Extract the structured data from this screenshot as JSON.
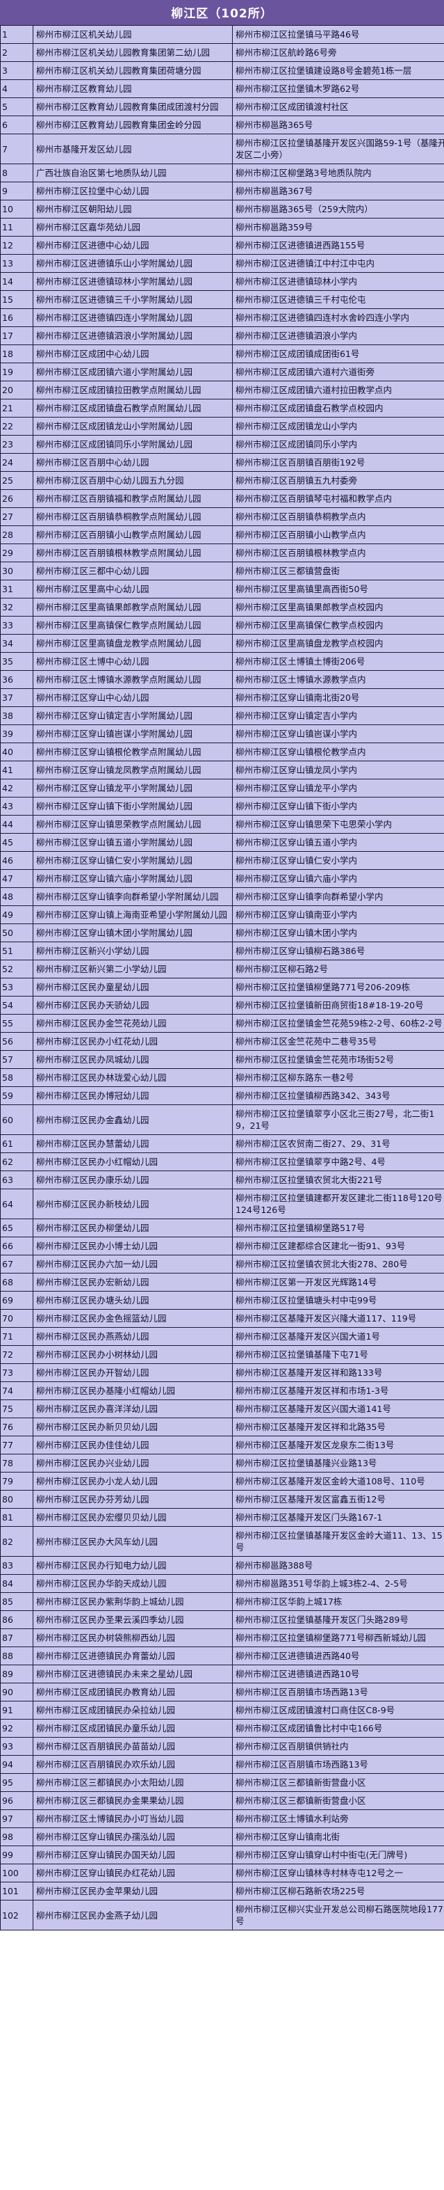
{
  "title": "柳江区（102所）",
  "colors": {
    "header_bg": "#6a549e",
    "header_text": "#ffffff",
    "row_bg": "#c9c6ee",
    "border": "#1b1b30",
    "text": "#10102a"
  },
  "table": {
    "rows": [
      [
        "1",
        "柳州市柳江区机关幼儿园",
        "柳州市柳江区拉堡镇马平路46号"
      ],
      [
        "2",
        "柳州市柳江区机关幼儿园教育集团第二幼儿园",
        "柳州市柳江区航岭路6号旁"
      ],
      [
        "3",
        "柳州市柳江区机关幼儿园教育集团荷塘分园",
        "柳州市柳江区拉堡镇建设路8号金碧苑1栋一层"
      ],
      [
        "4",
        "柳州市柳江区教育幼儿园",
        "柳州市柳江区拉堡镇木罗路62号"
      ],
      [
        "5",
        "柳州市柳江区教育幼儿园教育集团成团渡村分园",
        "柳州市柳江区成团镇渡村社区"
      ],
      [
        "6",
        "柳州市柳江区教育幼儿园教育集团金岭分园",
        "柳州市柳邕路365号"
      ],
      [
        "7",
        "柳州市基隆开发区幼儿园",
        "柳州市柳江区拉堡镇基隆开发区兴国路59-1号（基隆开发区二小旁）"
      ],
      [
        "8",
        "广西壮族自治区第七地质队幼儿园",
        "柳州市柳江区柳堡路3号地质队院内"
      ],
      [
        "9",
        "柳州市柳江区拉堡中心幼儿园",
        "柳州市柳邕路367号"
      ],
      [
        "10",
        "柳州市柳江区朝阳幼儿园",
        "柳州市柳邕路365号（259大院内）"
      ],
      [
        "11",
        "柳州市柳江区嘉华苑幼儿园",
        "柳州市柳邕路359号"
      ],
      [
        "12",
        "柳州市柳江区进德中心幼儿园",
        "柳州市柳江区进德镇进西路155号"
      ],
      [
        "13",
        "柳州市柳江区进德镇乐山小学附属幼儿园",
        "柳州市柳江区进德镇江中村江中屯内"
      ],
      [
        "14",
        "柳州市柳江区进德镇琼林小学附属幼儿园",
        "柳州市柳江区进德镇琼林小学内"
      ],
      [
        "15",
        "柳州市柳江区进德镇三千小学附属幼儿园",
        "柳州市柳江区进德镇三千村屯伦屯"
      ],
      [
        "16",
        "柳州市柳江区进德镇四连小学附属幼儿园",
        "柳州市柳江区进德镇四连村水舍岭四连小学内"
      ],
      [
        "17",
        "柳州市柳江区进德镇泗浪小学附属幼儿园",
        "柳州市柳江区进德镇泗浪小学内"
      ],
      [
        "18",
        "柳州市柳江区成团中心幼儿园",
        "柳州市柳江区成团镇成团街61号"
      ],
      [
        "19",
        "柳州市柳江区成团镇六道小学附属幼儿园",
        "柳州市柳江区成团镇六道村六道街旁"
      ],
      [
        "20",
        "柳州市柳江区成团镇拉田教学点附属幼儿园",
        "柳州市柳江区成团镇六道村拉田教学点内"
      ],
      [
        "21",
        "柳州市柳江区成团镇盘石教学点附属幼儿园",
        "柳州市柳江区成团镇盘石教学点校园内"
      ],
      [
        "22",
        "柳州市柳江区成团镇龙山小学附属幼儿园",
        "柳州市柳江区成团镇龙山小学内"
      ],
      [
        "23",
        "柳州市柳江区成团镇同乐小学附属幼儿园",
        "柳州市柳江区成团镇同乐小学内"
      ],
      [
        "24",
        "柳州市柳江区百朋中心幼儿园",
        "柳州市柳江区百朋镇百朋街192号"
      ],
      [
        "25",
        "柳州市柳江区百朋中心幼儿园五九分园",
        "柳州市柳江区百朋镇五九村委旁"
      ],
      [
        "26",
        "柳州市柳江区百朋镇福和教学点附属幼儿园",
        "柳州市柳江区百朋镇琴屯村福和教学点内"
      ],
      [
        "27",
        "柳州市柳江区百朋镇恭桐教学点附属幼儿园",
        "柳州市柳江区百朋镇恭桐教学点内"
      ],
      [
        "28",
        "柳州市柳江区百朋镇小山教学点附属幼儿园",
        "柳州市柳江区百朋镇小山教学点内"
      ],
      [
        "29",
        "柳州市柳江区百朋镇根林教学点附属幼儿园",
        "柳州市柳江区百朋镇根林教学点内"
      ],
      [
        "30",
        "柳州市柳江区三都中心幼儿园",
        "柳州市柳江区三都镇营盘街"
      ],
      [
        "31",
        "柳州市柳江区里高中心幼儿园",
        "柳州市柳江区里高镇里高西街50号"
      ],
      [
        "32",
        "柳州市柳江区里高镇果郎教学点附属幼儿园",
        "柳州市柳江区里高镇果郎教学点校园内"
      ],
      [
        "33",
        "柳州市柳江区里高镇保仁教学点附属幼儿园",
        "柳州市柳江区里高镇保仁教学点校园内"
      ],
      [
        "34",
        "柳州市柳江区里高镇盘龙教学点附属幼儿园",
        "柳州市柳江区里高镇盘龙教学点校园内"
      ],
      [
        "35",
        "柳州市柳江区土博中心幼儿园",
        "柳州市柳江区土博镇土博街206号"
      ],
      [
        "36",
        "柳州市柳江区土博镇水源教学点附属幼儿园",
        "柳州市柳江区土博镇水源教学点内"
      ],
      [
        "37",
        "柳州市柳江区穿山中心幼儿园",
        "柳州市柳江区穿山镇南北街20号"
      ],
      [
        "38",
        "柳州市柳江区穿山镇定吉小学附属幼儿园",
        "柳州市柳江区穿山镇定吉小学内"
      ],
      [
        "39",
        "柳州市柳江区穿山镇岜谋小学附属幼儿园",
        "柳州市柳江区穿山镇岜谋小学内"
      ],
      [
        "40",
        "柳州市柳江区穿山镇根伦教学点附属幼儿园",
        "柳州市柳江区穿山镇根伦教学点内"
      ],
      [
        "41",
        "柳州市柳江区穿山镇龙凤教学点附属幼儿园",
        "柳州市柳江区穿山镇龙凤小学内"
      ],
      [
        "42",
        "柳州市柳江区穿山镇龙平小学附属幼儿园",
        "柳州市柳江区穿山镇龙平小学内"
      ],
      [
        "43",
        "柳州市柳江区穿山镇下街小学附属幼儿园",
        "柳州市柳江区穿山镇下街小学内"
      ],
      [
        "44",
        "柳州市柳江区穿山镇思荣教学点附属幼儿园",
        "柳州市柳江区穿山镇思荣下屯思荣小学内"
      ],
      [
        "45",
        "柳州市柳江区穿山镇五道小学附属幼儿园",
        "柳州市柳江区穿山镇五道小学内"
      ],
      [
        "46",
        "柳州市柳江区穿山镇仁安小学附属幼儿园",
        "柳州市柳江区穿山镇仁安小学内"
      ],
      [
        "47",
        "柳州市柳江区穿山镇六庙小学附属幼儿园",
        "柳州市柳江区穿山镇六庙小学内"
      ],
      [
        "48",
        "柳州市柳江区穿山镇李向群希望小学附属幼儿园",
        "柳州市柳江区穿山镇李向群希望小学内"
      ],
      [
        "49",
        "柳州市柳江区穿山镇上海南亚希望小学附属幼儿园",
        "柳州市柳江区穿山镇南亚小学内"
      ],
      [
        "50",
        "柳州市柳江区穿山镇木团小学附属幼儿园",
        "柳州市柳江区穿山镇木团小学内"
      ],
      [
        "51",
        "柳州市柳江区新兴小学幼儿园",
        "柳州市柳江区穿山镇柳石路386号"
      ],
      [
        "52",
        "柳州市柳江区新兴第二小学幼儿园",
        "柳州市柳江区柳石路2号"
      ],
      [
        "53",
        "柳州市柳江区民办童星幼儿园",
        "柳州市柳江区拉堡镇柳堡路771号206-209栋"
      ],
      [
        "54",
        "柳州市柳江区民办天骄幼儿园",
        "柳州市柳江区拉堡镇新田商贸街18#18-19-20号"
      ],
      [
        "55",
        "柳州市柳江区民办金竺花苑幼儿园",
        "柳州市柳江区拉堡镇金竺花苑59栋2-2号、60栋2-2号"
      ],
      [
        "56",
        "柳州市柳江区民办小红花幼儿园",
        "柳州市柳江区金竺花苑中二巷号35号"
      ],
      [
        "57",
        "柳州市柳江区民办凤城幼儿园",
        "柳州市柳江区拉堡镇金竺花苑市场街52号"
      ],
      [
        "58",
        "柳州市柳江区民办林珑爱心幼儿园",
        "柳州市柳江区柳东路东一巷2号"
      ],
      [
        "59",
        "柳州市柳江区民办博冠幼儿园",
        "柳州市柳江区拉堡镇柳西路342、343号"
      ],
      [
        "60",
        "柳州市柳江区民办金鑫幼儿园",
        "柳州市柳江区拉堡镇翠亨小区北三街27号，北二街19，21号"
      ],
      [
        "61",
        "柳州市柳江区民办慧蕾幼儿园",
        "柳州市柳江区农贸南二街27、29、31号"
      ],
      [
        "62",
        "柳州市柳江区民办小红帽幼儿园",
        "柳州市柳江区拉堡镇翠亨中路2号、4号"
      ],
      [
        "63",
        "柳州市柳江区民办康乐幼儿园",
        "柳州市柳江区拉堡镇农贸北大街221号"
      ],
      [
        "64",
        "柳州市柳江区民办新枝幼儿园",
        "柳州市柳江区拉堡镇建都开发区建北二街118号120号124号126号"
      ],
      [
        "65",
        "柳州市柳江区民办柳堡幼儿园",
        "柳州市柳江区拉堡镇柳堡路517号"
      ],
      [
        "66",
        "柳州市柳江区民办小博士幼儿园",
        "柳州市柳江区建都综合区建北一街91、93号"
      ],
      [
        "67",
        "柳州市柳江区民办六加一幼儿园",
        "柳州市柳江区拉堡镇农贸北大街278、280号"
      ],
      [
        "68",
        "柳州市柳江区民办宏新幼儿园",
        "柳州市柳江区第一开发区光辉路14号"
      ],
      [
        "69",
        "柳州市柳江区民办塘头幼儿园",
        "柳州市柳江区拉堡镇塘头村中屯99号"
      ],
      [
        "70",
        "柳州市柳江区民办金色摇篮幼儿园",
        "柳州市柳江区基隆开发区兴隆大道117、119号"
      ],
      [
        "71",
        "柳州市柳江区民办燕燕幼儿园",
        "柳州市柳江区基隆开发区兴国大道1号"
      ],
      [
        "72",
        "柳州市柳江区民办小树林幼儿园",
        "柳州市柳江区拉堡镇基隆下屯71号"
      ],
      [
        "73",
        "柳州市柳江区民办开智幼儿园",
        "柳州市柳江区基隆开发区祥和路133号"
      ],
      [
        "74",
        "柳州市柳江区民办基隆小红帽幼儿园",
        "柳州市柳江区基隆开发区祥和市场1-3号"
      ],
      [
        "75",
        "柳州市柳江区民办喜洋洋幼儿园",
        "柳州市柳江区基隆开发区兴国大道141号"
      ],
      [
        "76",
        "柳州市柳江区民办新贝贝幼儿园",
        "柳州市柳江区基隆开发区祥和北路35号"
      ],
      [
        "77",
        "柳州市柳江区民办佳佳幼儿园",
        "柳州市柳江区基隆开发区龙泉东二街13号"
      ],
      [
        "78",
        "柳州市柳江区民办兴业幼儿园",
        "柳州市柳江区拉堡镇基隆兴业路13号"
      ],
      [
        "79",
        "柳州市柳江区民办小龙人幼儿园",
        "柳州市柳江区基隆开发区金岭大道108号、110号"
      ],
      [
        "80",
        "柳州市柳江区民办芬芳幼儿园",
        "柳州市柳江区基隆开发区富鑫五街12号"
      ],
      [
        "81",
        "柳州市柳江区民办宏缨贝贝幼儿园",
        "柳州市柳江区基隆开发区门头路167-1"
      ],
      [
        "82",
        "柳州市柳江区民办大风车幼儿园",
        "柳州市柳江区拉堡镇基隆开发区金岭大道11、13、15号"
      ],
      [
        "83",
        "柳州市柳江区民办行知电力幼儿园",
        "柳州市柳邕路388号"
      ],
      [
        "84",
        "柳州市柳江区民办华韵天成幼儿园",
        "柳州市柳邕路351号华韵上城3栋2-4、2-5号"
      ],
      [
        "85",
        "柳州市柳江区民办紫荆华韵上城幼儿园",
        "柳州市柳江区华韵上城17栋"
      ],
      [
        "86",
        "柳州市柳江区民办圣果云溪四季幼儿园",
        "柳州市柳江区拉堡镇基隆开发区门头路289号"
      ],
      [
        "87",
        "柳州市柳江区民办树袋熊柳西幼儿园",
        "柳州市柳江区拉堡镇柳堡路771号柳西新城幼儿园"
      ],
      [
        "88",
        "柳州市柳江区进德镇民办育蕾幼儿园",
        "柳州市柳江区进德镇进西路40号"
      ],
      [
        "89",
        "柳州市柳江区进德镇民办未来之星幼儿园",
        "柳州市柳江区进德镇进西路10号"
      ],
      [
        "90",
        "柳州市柳江区成团镇民办教育幼儿园",
        "柳州市柳江区百朋镇市场西路13号"
      ],
      [
        "91",
        "柳州市柳江区成团镇民办朵拉幼儿园",
        "柳州市柳江区成团镇渡村口商住区C8-9号"
      ],
      [
        "92",
        "柳州市柳江区成团镇民办童乐幼儿园",
        "柳州市柳江区成团镇鲁比村中屯166号"
      ],
      [
        "93",
        "柳州市柳江区百朋镇民办苗苗幼儿园",
        "柳州市柳江区百朋镇供销社内"
      ],
      [
        "94",
        "柳州市柳江区百朋镇民办欢乐幼儿园",
        "柳州市柳江区百朋镇市场西路13号"
      ],
      [
        "95",
        "柳州市柳江区三都镇民办小太阳幼儿园",
        "柳州市柳江区三都镇新街营盘小区"
      ],
      [
        "96",
        "柳州市柳江区三都镇民办金果果幼儿园",
        "柳州市柳江区三都镇新街营盘小区"
      ],
      [
        "97",
        "柳州市柳江区土博镇民办小叮当幼儿园",
        "柳州市柳江区土博镇水利站旁"
      ],
      [
        "98",
        "柳州市柳江区穿山镇民办孺泓幼儿园",
        "柳州市柳江区穿山镇南北街"
      ],
      [
        "99",
        "柳州市柳江区穿山镇民办国天幼儿园",
        "柳州市柳江区穿山镇穿山村中街屯(无门牌号)"
      ],
      [
        "100",
        "柳州市柳江区穿山镇民办红花幼儿园",
        "柳州市柳江区穿山镇林寺村林寺屯12号之一"
      ],
      [
        "101",
        "柳州市柳江区民办金苹果幼儿园",
        "柳州市柳江区柳石路新农场225号"
      ],
      [
        "102",
        "柳州市柳江区民办金燕子幼儿园",
        "柳州市柳江区柳兴实业开发总公司柳石路医院地段177号"
      ]
    ]
  }
}
